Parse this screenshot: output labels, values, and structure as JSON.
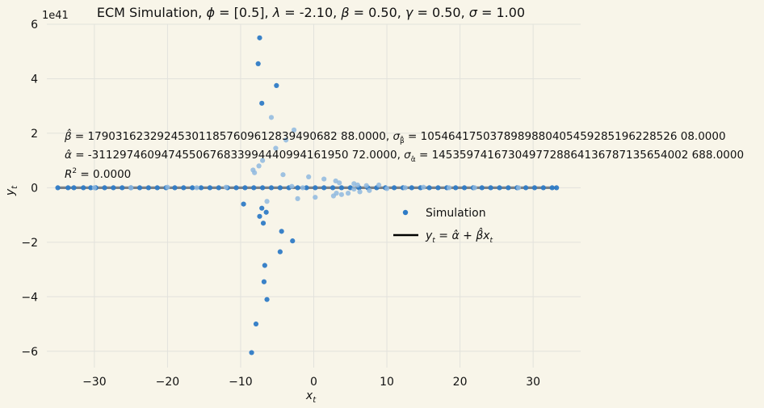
{
  "chart_data": {
    "type": "scatter",
    "title": "ECM Simulation, ϕ = [0.5], λ = -2.10, β = 0.50, γ = 0.50, σ = 1.00",
    "xlabel": "x_t",
    "ylabel": "y_t",
    "y_multiplier_label": "1e41",
    "xlim": [
      -36.5,
      36.5
    ],
    "ylim": [
      -6.6,
      6.0
    ],
    "x_ticks": [
      -30,
      -20,
      -10,
      0,
      10,
      20,
      30
    ],
    "x_tick_labels": [
      "−30",
      "−20",
      "−10",
      "0",
      "10",
      "20",
      "30"
    ],
    "y_ticks": [
      -6,
      -4,
      -2,
      0,
      2,
      4,
      6
    ],
    "y_tick_labels": [
      "−6",
      "−4",
      "−2",
      "0",
      "2",
      "4",
      "6"
    ],
    "grid": true,
    "legend_position": "center-right",
    "annotations": [
      "β̂ = 179031623292453011857609612839490682 88.0000, σβ̂ = 1054641750378989880405459285196228526 08.0000",
      "α̂ = -3112974609474550676833994440994161950 72.0000, σα̂ = 1453597416730497728864136787135654002 688.0000",
      "R² = 0.0000"
    ],
    "series": [
      {
        "name": "Simulation",
        "color": "#2f7bc6",
        "points": [
          [
            -7.4,
            5.5
          ],
          [
            -7.6,
            4.55
          ],
          [
            -5.1,
            3.75
          ],
          [
            -7.1,
            3.1
          ],
          [
            -9.6,
            -0.6
          ],
          [
            -7.4,
            -1.05
          ],
          [
            -7.1,
            -0.75
          ],
          [
            -6.5,
            -0.9
          ],
          [
            -6.9,
            -1.3
          ],
          [
            -4.4,
            -1.6
          ],
          [
            -2.9,
            -1.95
          ],
          [
            -4.6,
            -2.35
          ],
          [
            -6.7,
            -2.85
          ],
          [
            -6.8,
            -3.45
          ],
          [
            -6.4,
            -4.1
          ],
          [
            -7.9,
            -5.0
          ],
          [
            -8.5,
            -6.05
          ],
          [
            -35,
            0
          ],
          [
            -33.6,
            0
          ],
          [
            -32.8,
            0
          ],
          [
            -31.5,
            0
          ],
          [
            -30.5,
            0
          ],
          [
            -29.8,
            0
          ],
          [
            -28.6,
            0
          ],
          [
            -27.4,
            0
          ],
          [
            -26.2,
            0
          ],
          [
            -25.0,
            0
          ],
          [
            -23.8,
            0
          ],
          [
            -22.6,
            0
          ],
          [
            -21.4,
            0
          ],
          [
            -20.2,
            0
          ],
          [
            -19.0,
            0
          ],
          [
            -17.8,
            0
          ],
          [
            -16.6,
            0
          ],
          [
            -15.4,
            0
          ],
          [
            -14.2,
            0
          ],
          [
            -13.0,
            0
          ],
          [
            -11.8,
            0
          ],
          [
            -10.6,
            0
          ],
          [
            -9.4,
            0
          ],
          [
            -8.2,
            0
          ],
          [
            -7.0,
            0
          ],
          [
            -5.8,
            0
          ],
          [
            -4.6,
            0
          ],
          [
            -3.4,
            0
          ],
          [
            -2.2,
            0
          ],
          [
            -1.0,
            0
          ],
          [
            0.2,
            0
          ],
          [
            1.4,
            0
          ],
          [
            2.6,
            0
          ],
          [
            3.8,
            0
          ],
          [
            5.0,
            0
          ],
          [
            6.2,
            0
          ],
          [
            7.4,
            0
          ],
          [
            8.6,
            0
          ],
          [
            9.8,
            0
          ],
          [
            11.0,
            0
          ],
          [
            12.2,
            0
          ],
          [
            13.4,
            0
          ],
          [
            14.6,
            0
          ],
          [
            15.8,
            0
          ],
          [
            17.0,
            0
          ],
          [
            18.2,
            0
          ],
          [
            19.4,
            0
          ],
          [
            20.6,
            0
          ],
          [
            21.8,
            0
          ],
          [
            23.0,
            0
          ],
          [
            24.2,
            0
          ],
          [
            25.4,
            0
          ],
          [
            26.6,
            0
          ],
          [
            27.8,
            0
          ],
          [
            29.0,
            0
          ],
          [
            30.2,
            0
          ],
          [
            31.4,
            0
          ],
          [
            32.6,
            0
          ],
          [
            33.2,
            0
          ]
        ]
      },
      {
        "name": "",
        "color": "#8fb8df",
        "points": [
          [
            -5.8,
            2.58
          ],
          [
            -2.7,
            2.12
          ],
          [
            -3.8,
            1.75
          ],
          [
            -5.2,
            1.45
          ],
          [
            -7.0,
            1.0
          ],
          [
            -7.5,
            0.8
          ],
          [
            -8.3,
            0.65
          ],
          [
            -8.1,
            0.55
          ],
          [
            -4.2,
            0.48
          ],
          [
            -0.7,
            0.4
          ],
          [
            1.4,
            0.32
          ],
          [
            3.0,
            0.25
          ],
          [
            3.5,
            0.18
          ],
          [
            5.5,
            0.15
          ],
          [
            6.0,
            0.1
          ],
          [
            7.2,
            0.08
          ],
          [
            8.9,
            0.1
          ],
          [
            -2.2,
            -0.4
          ],
          [
            0.2,
            -0.35
          ],
          [
            -6.4,
            -0.5
          ],
          [
            2.7,
            -0.3
          ],
          [
            3.1,
            -0.2
          ],
          [
            3.8,
            -0.25
          ],
          [
            4.7,
            -0.2
          ],
          [
            6.3,
            -0.15
          ],
          [
            7.6,
            -0.1
          ],
          [
            5.5,
            -0.05
          ],
          [
            10.0,
            -0.03
          ],
          [
            -12.0,
            0.02
          ],
          [
            -20.0,
            0.02
          ],
          [
            -25.0,
            0.0
          ],
          [
            15.0,
            0.02
          ],
          [
            22.0,
            0.0
          ],
          [
            28.0,
            0.0
          ],
          [
            -30.0,
            0.0
          ],
          [
            12.5,
            0.0
          ],
          [
            -16.0,
            0.0
          ],
          [
            18.5,
            0.0
          ],
          [
            -3.0,
            0.05
          ],
          [
            -1.5,
            0.0
          ]
        ]
      }
    ],
    "fit_line": {
      "label": "y_t = α̂ + β̂x_t",
      "x": [
        -35,
        33.2
      ],
      "y": [
        0.0,
        0.0
      ],
      "color": "#000000"
    }
  }
}
